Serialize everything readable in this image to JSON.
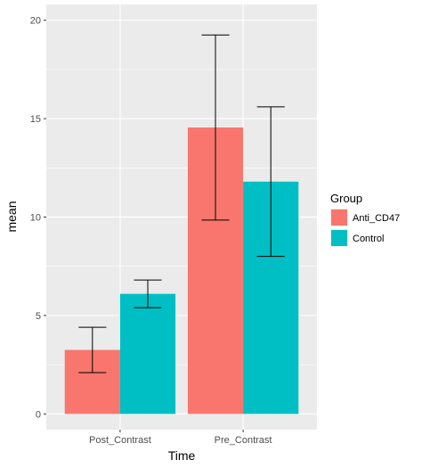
{
  "chart_data": {
    "type": "bar",
    "xlabel": "Time",
    "ylabel": "mean",
    "ylim": [
      -0.8,
      20.8
    ],
    "yticks": [
      0,
      5,
      10,
      15,
      20
    ],
    "grid": true,
    "legend_position": "right",
    "legend_title": "Group",
    "categories": [
      "Post_Contrast",
      "Pre_Contrast"
    ],
    "series": [
      {
        "name": "Anti_CD47",
        "color": "#F8766D",
        "values": [
          3.25,
          14.55
        ],
        "error_low": [
          2.1,
          9.85
        ],
        "error_high": [
          4.4,
          19.25
        ]
      },
      {
        "name": "Control",
        "color": "#00BFC4",
        "values": [
          6.1,
          11.8
        ],
        "error_low": [
          5.4,
          8.0
        ],
        "error_high": [
          6.8,
          15.6
        ]
      }
    ]
  }
}
